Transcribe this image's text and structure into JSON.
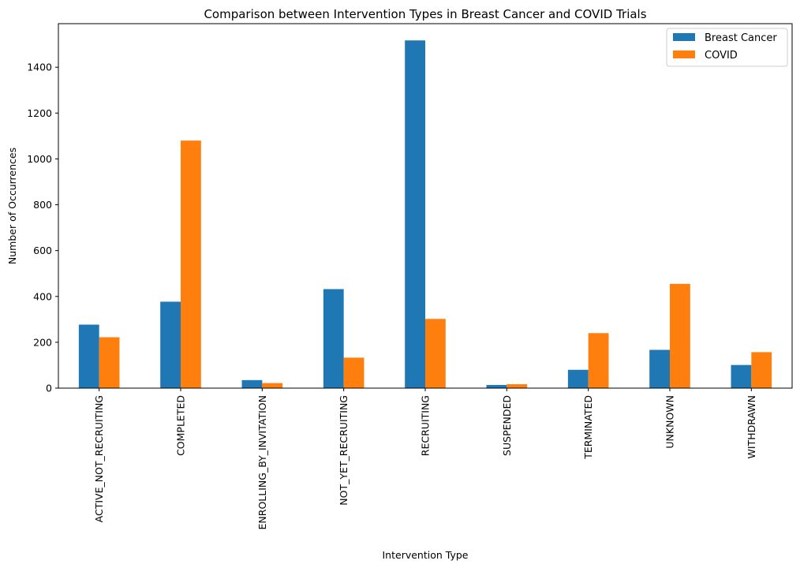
{
  "chart_data": {
    "type": "bar",
    "title": "Comparison between Intervention Types in Breast Cancer and COVID Trials",
    "xlabel": "Intervention Type",
    "ylabel": "Number of Occurrences",
    "categories": [
      "ACTIVE_NOT_RECRUITING",
      "COMPLETED",
      "ENROLLING_BY_INVITATION",
      "NOT_YET_RECRUITING",
      "RECRUITING",
      "SUSPENDED",
      "TERMINATED",
      "UNKNOWN",
      "WITHDRAWN"
    ],
    "series": [
      {
        "name": "Breast Cancer",
        "color": "#1f77b4",
        "values": [
          277,
          377,
          35,
          432,
          1517,
          14,
          80,
          167,
          101
        ]
      },
      {
        "name": "COVID",
        "color": "#ff7f0e",
        "values": [
          222,
          1080,
          22,
          133,
          302,
          17,
          240,
          455,
          157
        ]
      }
    ],
    "ylim": [
      0,
      1590
    ],
    "yticks": [
      0,
      200,
      400,
      600,
      800,
      1000,
      1200,
      1400
    ],
    "grid": false,
    "legend_position": "top-right"
  }
}
